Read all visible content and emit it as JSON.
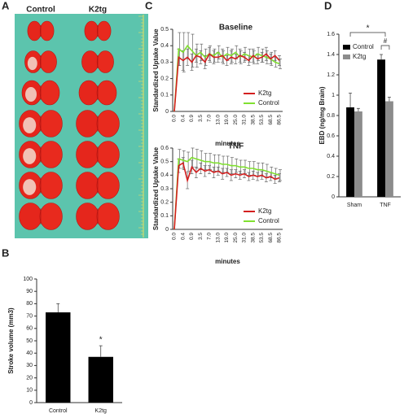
{
  "panels": [
    "A",
    "B",
    "C",
    "D"
  ],
  "photo": {
    "columns": [
      "Control",
      "K2tg"
    ]
  },
  "chart_data": [
    {
      "type": "bar",
      "ylabel": "Stroke volume (mm3)",
      "categories": [
        "Control",
        "K2tg"
      ],
      "values": [
        73,
        37
      ],
      "errors": [
        7,
        9
      ],
      "color": "#000000",
      "ylim": [
        0,
        100
      ],
      "yticks": [
        0,
        10,
        20,
        30,
        40,
        50,
        60,
        70,
        80,
        90,
        100
      ],
      "annotation": "*"
    },
    {
      "type": "line",
      "title": "Baseline",
      "xlabel": "minutes",
      "ylabel": "Standardized Uptake Value",
      "categories": [
        "0.0",
        null,
        "0.4",
        null,
        "0.9",
        null,
        "3.5",
        null,
        "7.0",
        null,
        "13.0",
        null,
        "19.0",
        null,
        "25.0",
        null,
        "31.0",
        null,
        "38.5",
        null,
        "53.5",
        null,
        "68.5",
        null,
        "86.5"
      ],
      "ylim": [
        0,
        0.5
      ],
      "yticks": [
        0,
        0.1,
        0.2,
        0.3,
        0.4,
        0.5
      ],
      "legend": "lower right",
      "series": [
        {
          "name": "K2tg",
          "color": "#d41f1f",
          "values": [
            0,
            0.33,
            0.31,
            0.33,
            0.3,
            0.34,
            0.33,
            0.3,
            0.35,
            0.33,
            0.33,
            0.34,
            0.31,
            0.33,
            0.32,
            0.34,
            0.33,
            0.31,
            0.34,
            0.32,
            0.33,
            0.35,
            0.32,
            0.34,
            0.31
          ],
          "errors": [
            0,
            0.05,
            0.06,
            0.05,
            0.05,
            0.04,
            0.04,
            0.04,
            0.04,
            0.04,
            0.03,
            0.04,
            0.03,
            0.04,
            0.03,
            0.04,
            0.03,
            0.03,
            0.04,
            0.03,
            0.03,
            0.04,
            0.03,
            0.03,
            0.03
          ]
        },
        {
          "name": "Control",
          "color": "#80e030",
          "values": [
            0,
            0.38,
            0.36,
            0.4,
            0.37,
            0.34,
            0.36,
            0.33,
            0.35,
            0.34,
            0.36,
            0.33,
            0.35,
            0.34,
            0.36,
            0.33,
            0.35,
            0.34,
            0.33,
            0.35,
            0.34,
            0.33,
            0.32,
            0.3,
            0.29
          ],
          "errors": [
            0,
            0.1,
            0.12,
            0.08,
            0.1,
            0.07,
            0.05,
            0.05,
            0.05,
            0.04,
            0.04,
            0.04,
            0.04,
            0.04,
            0.04,
            0.04,
            0.04,
            0.04,
            0.04,
            0.04,
            0.04,
            0.04,
            0.04,
            0.03,
            0.03
          ]
        }
      ]
    },
    {
      "type": "line",
      "title": "TNF",
      "xlabel": "minutes",
      "ylabel": "Standardized Uptake Value",
      "categories": [
        "0.0",
        null,
        "0.4",
        null,
        "0.9",
        null,
        "3.5",
        null,
        "7.0",
        null,
        "13.0",
        null,
        "19.0",
        null,
        "25.0",
        null,
        "31.0",
        null,
        "38.5",
        null,
        "53.5",
        null,
        "68.5",
        null,
        "86.5"
      ],
      "ylim": [
        0,
        0.6
      ],
      "yticks": [
        0,
        0.1,
        0.2,
        0.3,
        0.4,
        0.5,
        0.6
      ],
      "legend": "lower right",
      "series": [
        {
          "name": "K2tg",
          "color": "#d41f1f",
          "values": [
            0,
            0.47,
            0.49,
            0.36,
            0.46,
            0.42,
            0.45,
            0.43,
            0.44,
            0.42,
            0.43,
            0.41,
            0.42,
            0.4,
            0.41,
            0.4,
            0.41,
            0.39,
            0.4,
            0.39,
            0.4,
            0.38,
            0.39,
            0.37,
            0.38
          ],
          "errors": [
            0,
            0.05,
            0.04,
            0.06,
            0.05,
            0.04,
            0.04,
            0.04,
            0.03,
            0.04,
            0.03,
            0.04,
            0.03,
            0.04,
            0.03,
            0.03,
            0.03,
            0.03,
            0.03,
            0.03,
            0.03,
            0.03,
            0.03,
            0.03,
            0.03
          ]
        },
        {
          "name": "Control",
          "color": "#80e030",
          "values": [
            0,
            0.52,
            0.51,
            0.5,
            0.53,
            0.52,
            0.51,
            0.5,
            0.5,
            0.49,
            0.49,
            0.48,
            0.48,
            0.47,
            0.47,
            0.46,
            0.46,
            0.45,
            0.45,
            0.44,
            0.44,
            0.43,
            0.42,
            0.41,
            0.4
          ],
          "errors": [
            0,
            0.07,
            0.07,
            0.07,
            0.07,
            0.07,
            0.07,
            0.06,
            0.06,
            0.06,
            0.06,
            0.06,
            0.06,
            0.06,
            0.05,
            0.05,
            0.05,
            0.05,
            0.05,
            0.05,
            0.05,
            0.05,
            0.04,
            0.04,
            0.04
          ]
        }
      ]
    },
    {
      "type": "bar",
      "ylabel": "EBD (ng/mg Brain)",
      "categories": [
        "Sham",
        "TNF"
      ],
      "ylim": [
        0,
        1.6
      ],
      "yticks": [
        0,
        0.2,
        0.4,
        0.6,
        0.8,
        1,
        1.2,
        1.4,
        1.6
      ],
      "legend": "upper left",
      "series": [
        {
          "name": "Control",
          "color": "#000000",
          "values": [
            0.88,
            1.35
          ],
          "errors": [
            0.14,
            0.05
          ]
        },
        {
          "name": "K2tg",
          "color": "#8c8c8c",
          "values": [
            0.84,
            0.94
          ],
          "errors": [
            0.03,
            0.04
          ]
        }
      ],
      "annotations": [
        "*",
        "#"
      ]
    }
  ]
}
